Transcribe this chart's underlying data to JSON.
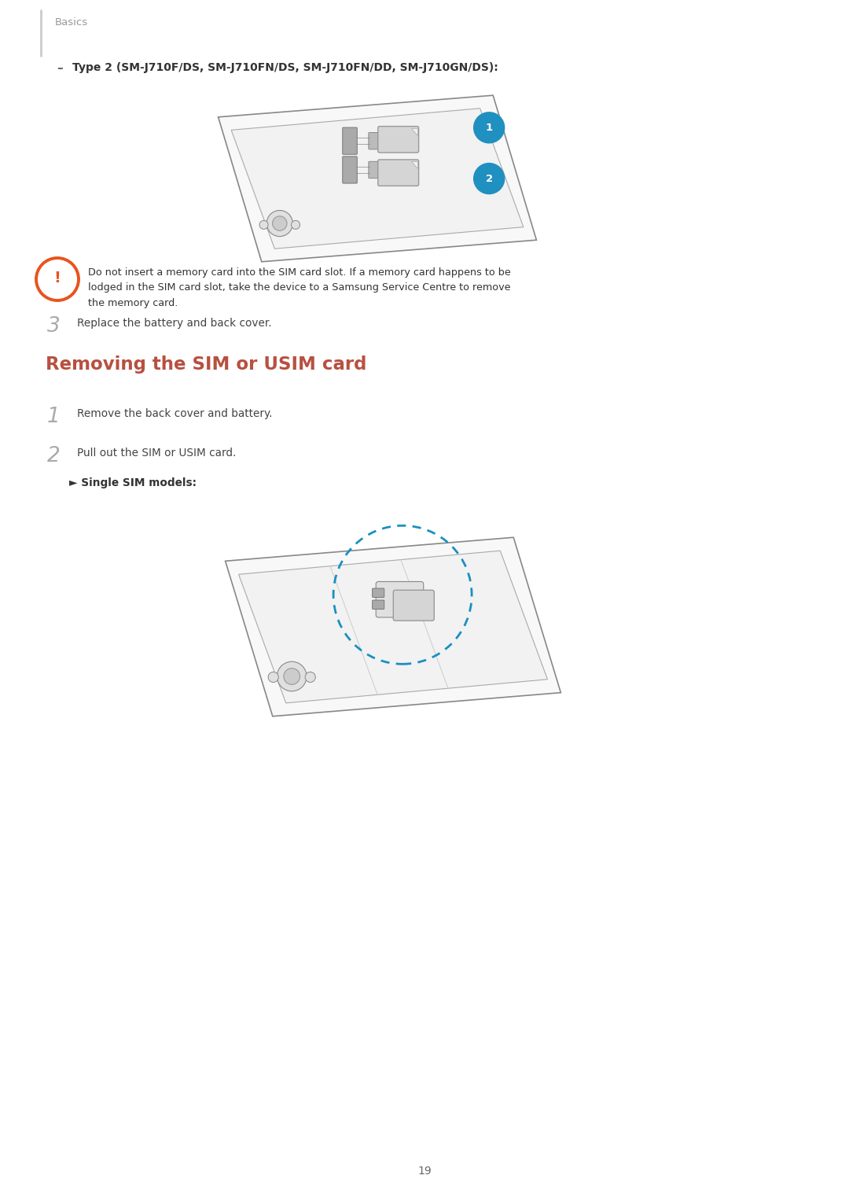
{
  "background_color": "#ffffff",
  "page_width": 10.8,
  "page_height": 15.27,
  "header_text": "Basics",
  "header_color": "#999999",
  "header_line_color": "#cccccc",
  "type2_label": "Type 2 (SM-J710F/DS, SM-J710FN/DS, SM-J710FN/DD, SM-J710GN/DS):",
  "warning_text_line1": "Do not insert a memory card into the SIM card slot. If a memory card happens to be",
  "warning_text_line2": "lodged in the SIM card slot, take the device to a Samsung Service Centre to remove",
  "warning_text_line3": "the memory card.",
  "warning_icon_color": "#e8541e",
  "step3_text": "Replace the battery and back cover.",
  "section_title": "Removing the SIM or USIM card",
  "section_title_color": "#b85040",
  "step1_text": "Remove the back cover and battery.",
  "step2_text": "Pull out the SIM or USIM card.",
  "single_sim_label": "► Single SIM models:",
  "page_number": "19",
  "blue_color": "#1a8fc1",
  "badge_blue": "#2090c0",
  "text_color": "#444444",
  "line_color": "#888888",
  "phone_fill": "#f8f8f8",
  "sim_fill": "#d8d8d8",
  "sim_stroke": "#999999"
}
